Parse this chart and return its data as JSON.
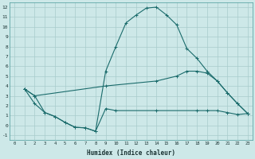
{
  "xlabel": "Humidex (Indice chaleur)",
  "background_color": "#cde8e8",
  "grid_color": "#a8cccc",
  "line_color": "#1a6b6b",
  "xlim": [
    -0.5,
    23.5
  ],
  "ylim": [
    -1.5,
    12.5
  ],
  "xticks": [
    0,
    1,
    2,
    3,
    4,
    5,
    6,
    7,
    8,
    9,
    10,
    11,
    12,
    13,
    14,
    15,
    16,
    17,
    18,
    19,
    20,
    21,
    22,
    23
  ],
  "yticks": [
    -1,
    0,
    1,
    2,
    3,
    4,
    5,
    6,
    7,
    8,
    9,
    10,
    11,
    12
  ],
  "series": [
    {
      "x": [
        1,
        2,
        3,
        4,
        5,
        6,
        7,
        8,
        9,
        10,
        11,
        12,
        13,
        14,
        15,
        16,
        17,
        18,
        19,
        20,
        21,
        22,
        23
      ],
      "y": [
        3.7,
        3.0,
        1.3,
        0.9,
        0.3,
        -0.2,
        -0.25,
        -0.6,
        5.5,
        8.0,
        10.4,
        11.2,
        11.9,
        12.0,
        11.2,
        10.2,
        7.8,
        6.8,
        5.5,
        4.5,
        3.3,
        2.2,
        1.2
      ]
    },
    {
      "x": [
        1,
        2,
        9,
        14,
        16,
        17,
        18,
        19,
        20,
        21,
        22,
        23
      ],
      "y": [
        3.7,
        3.0,
        4.0,
        4.5,
        5.0,
        5.5,
        5.5,
        5.3,
        4.5,
        3.3,
        2.2,
        1.2
      ]
    },
    {
      "x": [
        1,
        2,
        3,
        4,
        5,
        6,
        7,
        8,
        9,
        10,
        14,
        18,
        19,
        20,
        21,
        22,
        23
      ],
      "y": [
        3.7,
        2.2,
        1.3,
        0.9,
        0.3,
        -0.2,
        -0.25,
        -0.6,
        1.7,
        1.5,
        1.5,
        1.5,
        1.5,
        1.5,
        1.3,
        1.1,
        1.2
      ]
    }
  ]
}
